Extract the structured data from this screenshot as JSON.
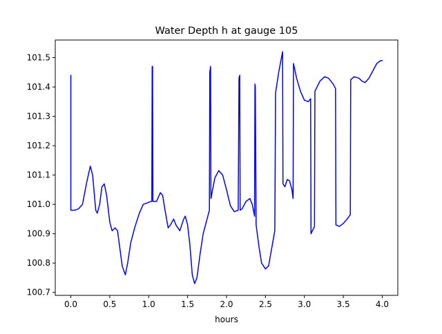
{
  "chart_data": {
    "type": "line",
    "title": "Water Depth h at gauge 105",
    "xlabel": "hours",
    "ylabel": "",
    "xlim": [
      -0.2,
      4.2
    ],
    "ylim": [
      100.69,
      101.56
    ],
    "x_ticks": [
      0.0,
      0.5,
      1.0,
      1.5,
      2.0,
      2.5,
      3.0,
      3.5,
      4.0
    ],
    "x_tick_labels": [
      "0.0",
      "0.5",
      "1.0",
      "1.5",
      "2.0",
      "2.5",
      "3.0",
      "3.5",
      "4.0"
    ],
    "y_ticks": [
      100.7,
      100.8,
      100.9,
      101.0,
      101.1,
      101.2,
      101.3,
      101.4,
      101.5
    ],
    "y_tick_labels": [
      "100.7",
      "100.8",
      "100.9",
      "101.0",
      "101.1",
      "101.2",
      "101.3",
      "101.4",
      "101.5"
    ],
    "grid": false,
    "series": [
      {
        "name": "",
        "color": "#0000ff",
        "points": [
          [
            0.0,
            101.44
          ],
          [
            0.0,
            100.98
          ],
          [
            0.05,
            100.98
          ],
          [
            0.1,
            100.985
          ],
          [
            0.15,
            101.0
          ],
          [
            0.2,
            101.07
          ],
          [
            0.25,
            101.13
          ],
          [
            0.28,
            101.1
          ],
          [
            0.32,
            100.98
          ],
          [
            0.34,
            100.97
          ],
          [
            0.37,
            101.0
          ],
          [
            0.4,
            101.06
          ],
          [
            0.43,
            101.07
          ],
          [
            0.46,
            101.03
          ],
          [
            0.5,
            100.94
          ],
          [
            0.53,
            100.91
          ],
          [
            0.57,
            100.92
          ],
          [
            0.6,
            100.91
          ],
          [
            0.63,
            100.85
          ],
          [
            0.66,
            100.79
          ],
          [
            0.7,
            100.76
          ],
          [
            0.73,
            100.8
          ],
          [
            0.77,
            100.87
          ],
          [
            0.82,
            100.92
          ],
          [
            0.88,
            100.97
          ],
          [
            0.93,
            101.0
          ],
          [
            0.98,
            101.005
          ],
          [
            1.03,
            101.01
          ],
          [
            1.04,
            101.01
          ],
          [
            1.045,
            101.47
          ],
          [
            1.05,
            101.47
          ],
          [
            1.055,
            101.01
          ],
          [
            1.1,
            101.01
          ],
          [
            1.15,
            101.04
          ],
          [
            1.18,
            101.03
          ],
          [
            1.21,
            100.98
          ],
          [
            1.25,
            100.92
          ],
          [
            1.28,
            100.93
          ],
          [
            1.32,
            100.95
          ],
          [
            1.35,
            100.93
          ],
          [
            1.4,
            100.91
          ],
          [
            1.45,
            100.95
          ],
          [
            1.47,
            100.96
          ],
          [
            1.5,
            100.93
          ],
          [
            1.53,
            100.86
          ],
          [
            1.56,
            100.76
          ],
          [
            1.59,
            100.73
          ],
          [
            1.62,
            100.75
          ],
          [
            1.66,
            100.83
          ],
          [
            1.7,
            100.9
          ],
          [
            1.74,
            100.94
          ],
          [
            1.78,
            100.98
          ],
          [
            1.785,
            101.45
          ],
          [
            1.79,
            101.46
          ],
          [
            1.795,
            101.47
          ],
          [
            1.8,
            101.02
          ],
          [
            1.85,
            101.09
          ],
          [
            1.9,
            101.115
          ],
          [
            1.95,
            101.1
          ],
          [
            2.0,
            101.05
          ],
          [
            2.05,
            100.995
          ],
          [
            2.1,
            100.975
          ],
          [
            2.15,
            100.98
          ],
          [
            2.16,
            101.43
          ],
          [
            2.17,
            101.44
          ],
          [
            2.175,
            100.98
          ],
          [
            2.2,
            100.985
          ],
          [
            2.25,
            101.01
          ],
          [
            2.3,
            101.02
          ],
          [
            2.33,
            101.0
          ],
          [
            2.36,
            100.96
          ],
          [
            2.365,
            101.41
          ],
          [
            2.37,
            101.4
          ],
          [
            2.38,
            100.93
          ],
          [
            2.42,
            100.85
          ],
          [
            2.45,
            100.8
          ],
          [
            2.5,
            100.78
          ],
          [
            2.54,
            100.79
          ],
          [
            2.58,
            100.85
          ],
          [
            2.62,
            100.91
          ],
          [
            2.63,
            101.38
          ],
          [
            2.67,
            101.45
          ],
          [
            2.72,
            101.52
          ],
          [
            2.725,
            101.07
          ],
          [
            2.75,
            101.06
          ],
          [
            2.78,
            101.085
          ],
          [
            2.81,
            101.08
          ],
          [
            2.84,
            101.05
          ],
          [
            2.855,
            101.02
          ],
          [
            2.86,
            101.48
          ],
          [
            2.9,
            101.43
          ],
          [
            2.95,
            101.385
          ],
          [
            3.0,
            101.355
          ],
          [
            3.05,
            101.35
          ],
          [
            3.08,
            101.36
          ],
          [
            3.085,
            100.9
          ],
          [
            3.13,
            100.925
          ],
          [
            3.135,
            101.385
          ],
          [
            3.2,
            101.42
          ],
          [
            3.26,
            101.435
          ],
          [
            3.31,
            101.43
          ],
          [
            3.37,
            101.41
          ],
          [
            3.4,
            101.395
          ],
          [
            3.405,
            100.93
          ],
          [
            3.45,
            100.925
          ],
          [
            3.5,
            100.935
          ],
          [
            3.55,
            100.95
          ],
          [
            3.59,
            100.965
          ],
          [
            3.595,
            101.425
          ],
          [
            3.64,
            101.435
          ],
          [
            3.7,
            101.43
          ],
          [
            3.74,
            101.42
          ],
          [
            3.78,
            101.415
          ],
          [
            3.83,
            101.43
          ],
          [
            3.88,
            101.455
          ],
          [
            3.93,
            101.48
          ],
          [
            3.98,
            101.49
          ],
          [
            4.0,
            101.49
          ]
        ]
      }
    ]
  }
}
